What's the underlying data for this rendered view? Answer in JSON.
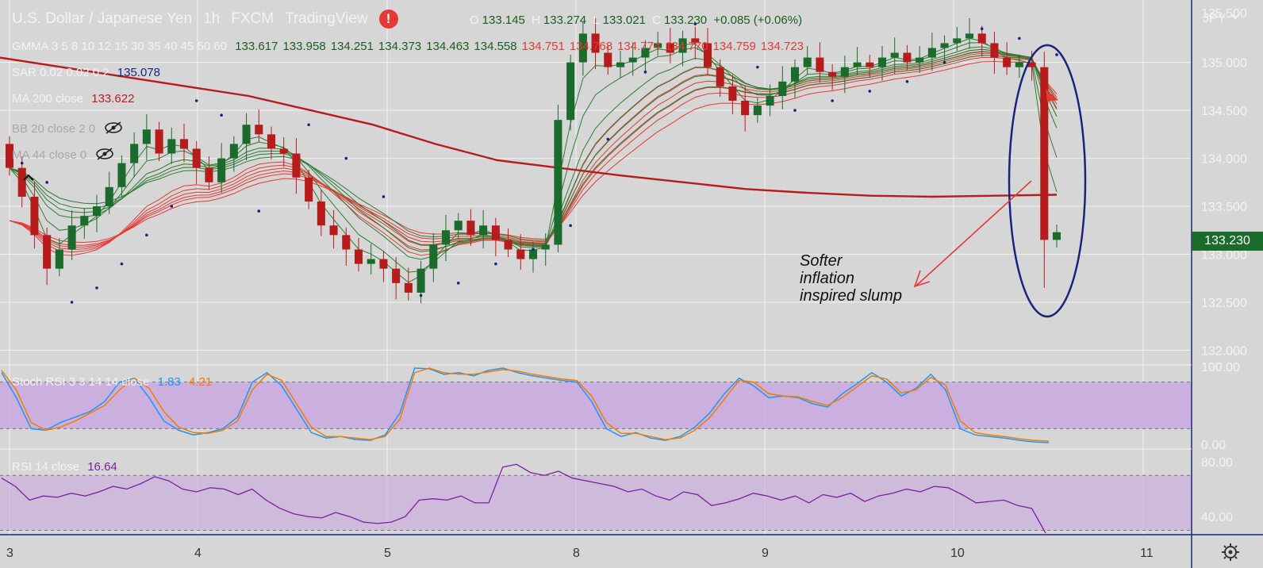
{
  "header": {
    "symbol": "U.S. Dollar / Japanese Yen",
    "interval": "1h",
    "broker": "FXCM",
    "platform": "TradingView",
    "alert_glyph": "!",
    "ohlc": [
      {
        "key": "O",
        "value": "133.145"
      },
      {
        "key": "H",
        "value": "133.274"
      },
      {
        "key": "L",
        "value": "133.021"
      },
      {
        "key": "C",
        "value": "133.230"
      }
    ],
    "change": "+0.085 (+0.06%)"
  },
  "indicators": {
    "gmma": {
      "label": "GMMA 3 5 8 10 12 15 30 35 40 45 50 60",
      "values": [
        "133.617",
        "133.958",
        "134.251",
        "134.373",
        "134.463",
        "134.558",
        "134.751",
        "134.768",
        "134.774",
        "134.770",
        "134.759",
        "134.723"
      ]
    },
    "sar": {
      "label": "SAR 0.02 0.02 0.2",
      "value": "135.078"
    },
    "ma200": {
      "label": "MA 200 close",
      "value": "133.622"
    },
    "bb": {
      "label": "BB 20 close 2 0"
    },
    "ma44": {
      "label": "MA 44 close 0"
    },
    "stoch": {
      "label": "Stoch RSI 3 3 14 14 close",
      "k": "1.83",
      "d": "4.21"
    },
    "rsi": {
      "label": "RSI 14 close",
      "value": "16.64"
    }
  },
  "annotation": {
    "lines": [
      "Softer",
      "inflation",
      "inspired slump"
    ]
  },
  "colors": {
    "bull": "#1b6b2d",
    "bear": "#b71c1c",
    "gmma_short": "#2e7d32",
    "gmma_long": "#e53935",
    "ma200": "#b71c1c",
    "sar": "#1a237e",
    "stoch_k": "#2196f3",
    "stoch_d": "#f57c00",
    "rsi": "#7b1fa2",
    "band": "#c8a8e0",
    "ellipse": "#1a237e",
    "arrow": "#e53935"
  },
  "chart_data": [
    {
      "type": "candlestick",
      "currency": "JPY",
      "x_ticks": [
        "3",
        "4",
        "5",
        "8",
        "9",
        "10",
        "11"
      ],
      "y_ticks": [
        "132.000",
        "132.500",
        "133.000",
        "133.500",
        "134.000",
        "134.500",
        "135.000"
      ],
      "y_top_tick": "135.500",
      "ylim": [
        131.88,
        135.65
      ],
      "last_price": "133.230",
      "ohlc_closes": [
        133.9,
        133.6,
        133.2,
        132.85,
        133.05,
        133.3,
        133.4,
        133.5,
        133.7,
        133.95,
        134.15,
        134.3,
        134.05,
        134.2,
        134.1,
        133.9,
        133.75,
        134.0,
        134.15,
        134.35,
        134.25,
        134.1,
        134.05,
        133.8,
        133.55,
        133.3,
        133.2,
        133.05,
        132.9,
        132.95,
        132.85,
        132.7,
        132.6,
        132.85,
        133.1,
        133.25,
        133.35,
        133.2,
        133.3,
        133.15,
        133.05,
        132.95,
        133.05,
        133.1,
        134.4,
        135.0,
        135.3,
        135.1,
        134.95,
        135.0,
        135.05,
        135.15,
        135.2,
        135.1,
        135.25,
        135.2,
        134.95,
        134.75,
        134.6,
        134.45,
        134.55,
        134.65,
        134.8,
        134.95,
        135.05,
        134.9,
        134.85,
        134.95,
        135.0,
        134.95,
        135.05,
        135.1,
        135.0,
        135.05,
        135.15,
        135.2,
        135.25,
        135.3,
        135.2,
        135.05,
        134.95,
        135.0,
        134.95,
        133.15,
        133.23
      ],
      "ma200": [
        135.05,
        134.95,
        134.85,
        134.75,
        134.65,
        134.5,
        134.35,
        134.15,
        133.98,
        133.9,
        133.82,
        133.75,
        133.68,
        133.64,
        133.61,
        133.6,
        133.61,
        133.62
      ],
      "sar_dots": [
        {
          "i": 1,
          "v": 133.95
        },
        {
          "i": 3,
          "v": 133.75
        },
        {
          "i": 5,
          "v": 132.5
        },
        {
          "i": 7,
          "v": 132.65
        },
        {
          "i": 9,
          "v": 132.9
        },
        {
          "i": 11,
          "v": 133.2
        },
        {
          "i": 13,
          "v": 133.5
        },
        {
          "i": 15,
          "v": 134.6
        },
        {
          "i": 17,
          "v": 134.45
        },
        {
          "i": 20,
          "v": 133.45
        },
        {
          "i": 24,
          "v": 134.35
        },
        {
          "i": 27,
          "v": 134.0
        },
        {
          "i": 30,
          "v": 133.6
        },
        {
          "i": 33,
          "v": 132.57
        },
        {
          "i": 36,
          "v": 132.7
        },
        {
          "i": 39,
          "v": 132.9
        },
        {
          "i": 42,
          "v": 133.05
        },
        {
          "i": 45,
          "v": 133.3
        },
        {
          "i": 48,
          "v": 134.2
        },
        {
          "i": 51,
          "v": 134.9
        },
        {
          "i": 55,
          "v": 135.4
        },
        {
          "i": 60,
          "v": 134.95
        },
        {
          "i": 63,
          "v": 134.5
        },
        {
          "i": 66,
          "v": 134.6
        },
        {
          "i": 69,
          "v": 134.7
        },
        {
          "i": 72,
          "v": 134.8
        },
        {
          "i": 75,
          "v": 135.0
        },
        {
          "i": 78,
          "v": 135.35
        },
        {
          "i": 81,
          "v": 135.25
        },
        {
          "i": 84,
          "v": 135.08
        }
      ]
    },
    {
      "type": "line",
      "name": "Stoch RSI",
      "y_ticks": [
        "0.00",
        "100.00"
      ],
      "ylim": [
        0,
        100
      ],
      "k": [
        92,
        60,
        20,
        18,
        28,
        35,
        42,
        55,
        80,
        85,
        60,
        30,
        18,
        12,
        15,
        20,
        35,
        80,
        92,
        75,
        45,
        15,
        8,
        10,
        6,
        5,
        12,
        40,
        98,
        97,
        90,
        92,
        88,
        95,
        98,
        92,
        88,
        85,
        82,
        80,
        55,
        20,
        10,
        15,
        8,
        5,
        10,
        22,
        40,
        65,
        85,
        75,
        60,
        62,
        60,
        52,
        48,
        65,
        78,
        92,
        80,
        62,
        72,
        90,
        70,
        20,
        12,
        10,
        8,
        5,
        3,
        2
      ],
      "d": [
        95,
        70,
        28,
        18,
        22,
        30,
        40,
        50,
        70,
        85,
        72,
        42,
        22,
        15,
        14,
        18,
        30,
        70,
        90,
        82,
        52,
        22,
        10,
        10,
        8,
        6,
        10,
        32,
        92,
        98,
        92,
        90,
        90,
        93,
        96,
        94,
        90,
        87,
        84,
        82,
        62,
        28,
        14,
        14,
        10,
        6,
        8,
        18,
        34,
        58,
        82,
        80,
        65,
        62,
        61,
        55,
        50,
        60,
        74,
        88,
        84,
        66,
        70,
        86,
        76,
        30,
        15,
        12,
        10,
        7,
        5,
        4
      ]
    },
    {
      "type": "line",
      "name": "RSI",
      "y_ticks": [
        "40.00",
        "80.00"
      ],
      "ylim": [
        28,
        88
      ],
      "values": [
        68,
        62,
        52,
        55,
        54,
        57,
        55,
        58,
        62,
        60,
        64,
        69,
        66,
        60,
        58,
        61,
        60,
        56,
        60,
        52,
        46,
        42,
        40,
        39,
        43,
        40,
        36,
        35,
        36,
        40,
        52,
        53,
        52,
        55,
        50,
        50,
        76,
        78,
        72,
        70,
        73,
        68,
        66,
        64,
        62,
        58,
        60,
        55,
        52,
        58,
        56,
        48,
        50,
        53,
        57,
        55,
        52,
        55,
        50,
        56,
        54,
        57,
        51,
        55,
        57,
        60,
        58,
        62,
        61,
        56,
        50,
        51,
        52,
        48,
        46,
        16
      ]
    }
  ]
}
